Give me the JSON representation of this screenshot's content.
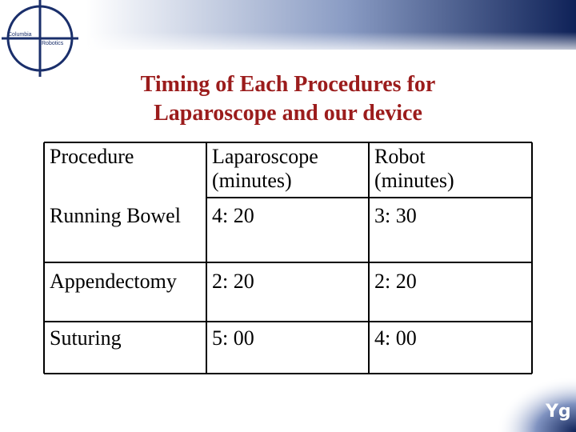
{
  "logo": [
    "Columbia",
    "Robotics"
  ],
  "title": [
    "Timing of Each Procedures for",
    "Laparoscope and our device"
  ],
  "table": {
    "header": [
      "Procedure",
      "Laparoscope (minutes)",
      "Robot (minutes)"
    ],
    "rows": [
      [
        "Running Bowel",
        "4: 20",
        "3: 30"
      ],
      [
        "Appendectomy",
        "2: 20",
        "2: 20"
      ],
      [
        "Suturing",
        "5: 00",
        "4: 00"
      ]
    ]
  },
  "corner_logo": "Yg"
}
